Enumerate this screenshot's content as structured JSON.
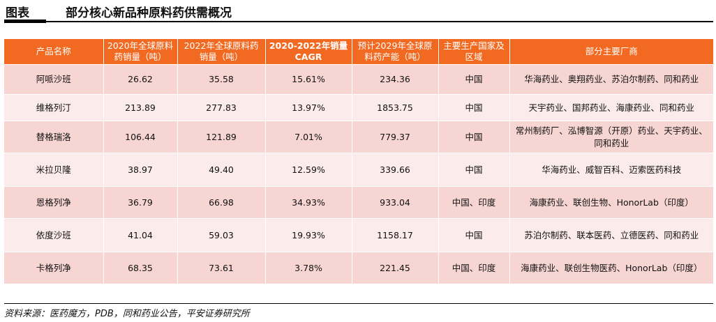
{
  "header": {
    "label": "图表",
    "title": "部分核心新品种原料药供需概况"
  },
  "table": {
    "columns": [
      "产品名称",
      "2020年全球原料药销量（吨）",
      "2022年全球原料药销量（吨）",
      "2020-2022年销量CAGR",
      "预计2029年全球原料药产能（吨）",
      "主要生产国家及区域",
      "部分主要厂商"
    ],
    "rows": [
      [
        "阿哌沙班",
        "26.62",
        "35.58",
        "15.61%",
        "234.36",
        "中国",
        "华海药业、奥翔药业、苏泊尔制药、同和药业"
      ],
      [
        "维格列汀",
        "213.89",
        "277.83",
        "13.97%",
        "1853.75",
        "中国",
        "天宇药业、国邦药业、海康药业、同和药业"
      ],
      [
        "替格瑞洛",
        "106.44",
        "121.89",
        "7.01%",
        "779.37",
        "中国",
        "常州制药厂、泓博智源（开原）药业、天宇药业、同和药业"
      ],
      [
        "米拉贝隆",
        "38.97",
        "49.40",
        "12.59%",
        "339.66",
        "中国",
        "华海药业、威智百科、迈索医药科技"
      ],
      [
        "恩格列净",
        "36.79",
        "66.98",
        "34.93%",
        "933.04",
        "中国、印度",
        "海康药业、联创生物、HonorLab（印度）"
      ],
      [
        "依度沙班",
        "41.04",
        "59.03",
        "19.93%",
        "1158.17",
        "中国",
        "苏泊尔制药、联本医药、立德医药、同和药业"
      ],
      [
        "卡格列净",
        "68.35",
        "73.61",
        "3.78%",
        "221.45",
        "中国、印度",
        "海康药业、联创生物医药、HonorLab（印度）"
      ]
    ]
  },
  "footer": {
    "source": "资料来源：医药魔方，PDB，同和药业公告，平安证券研究所"
  }
}
